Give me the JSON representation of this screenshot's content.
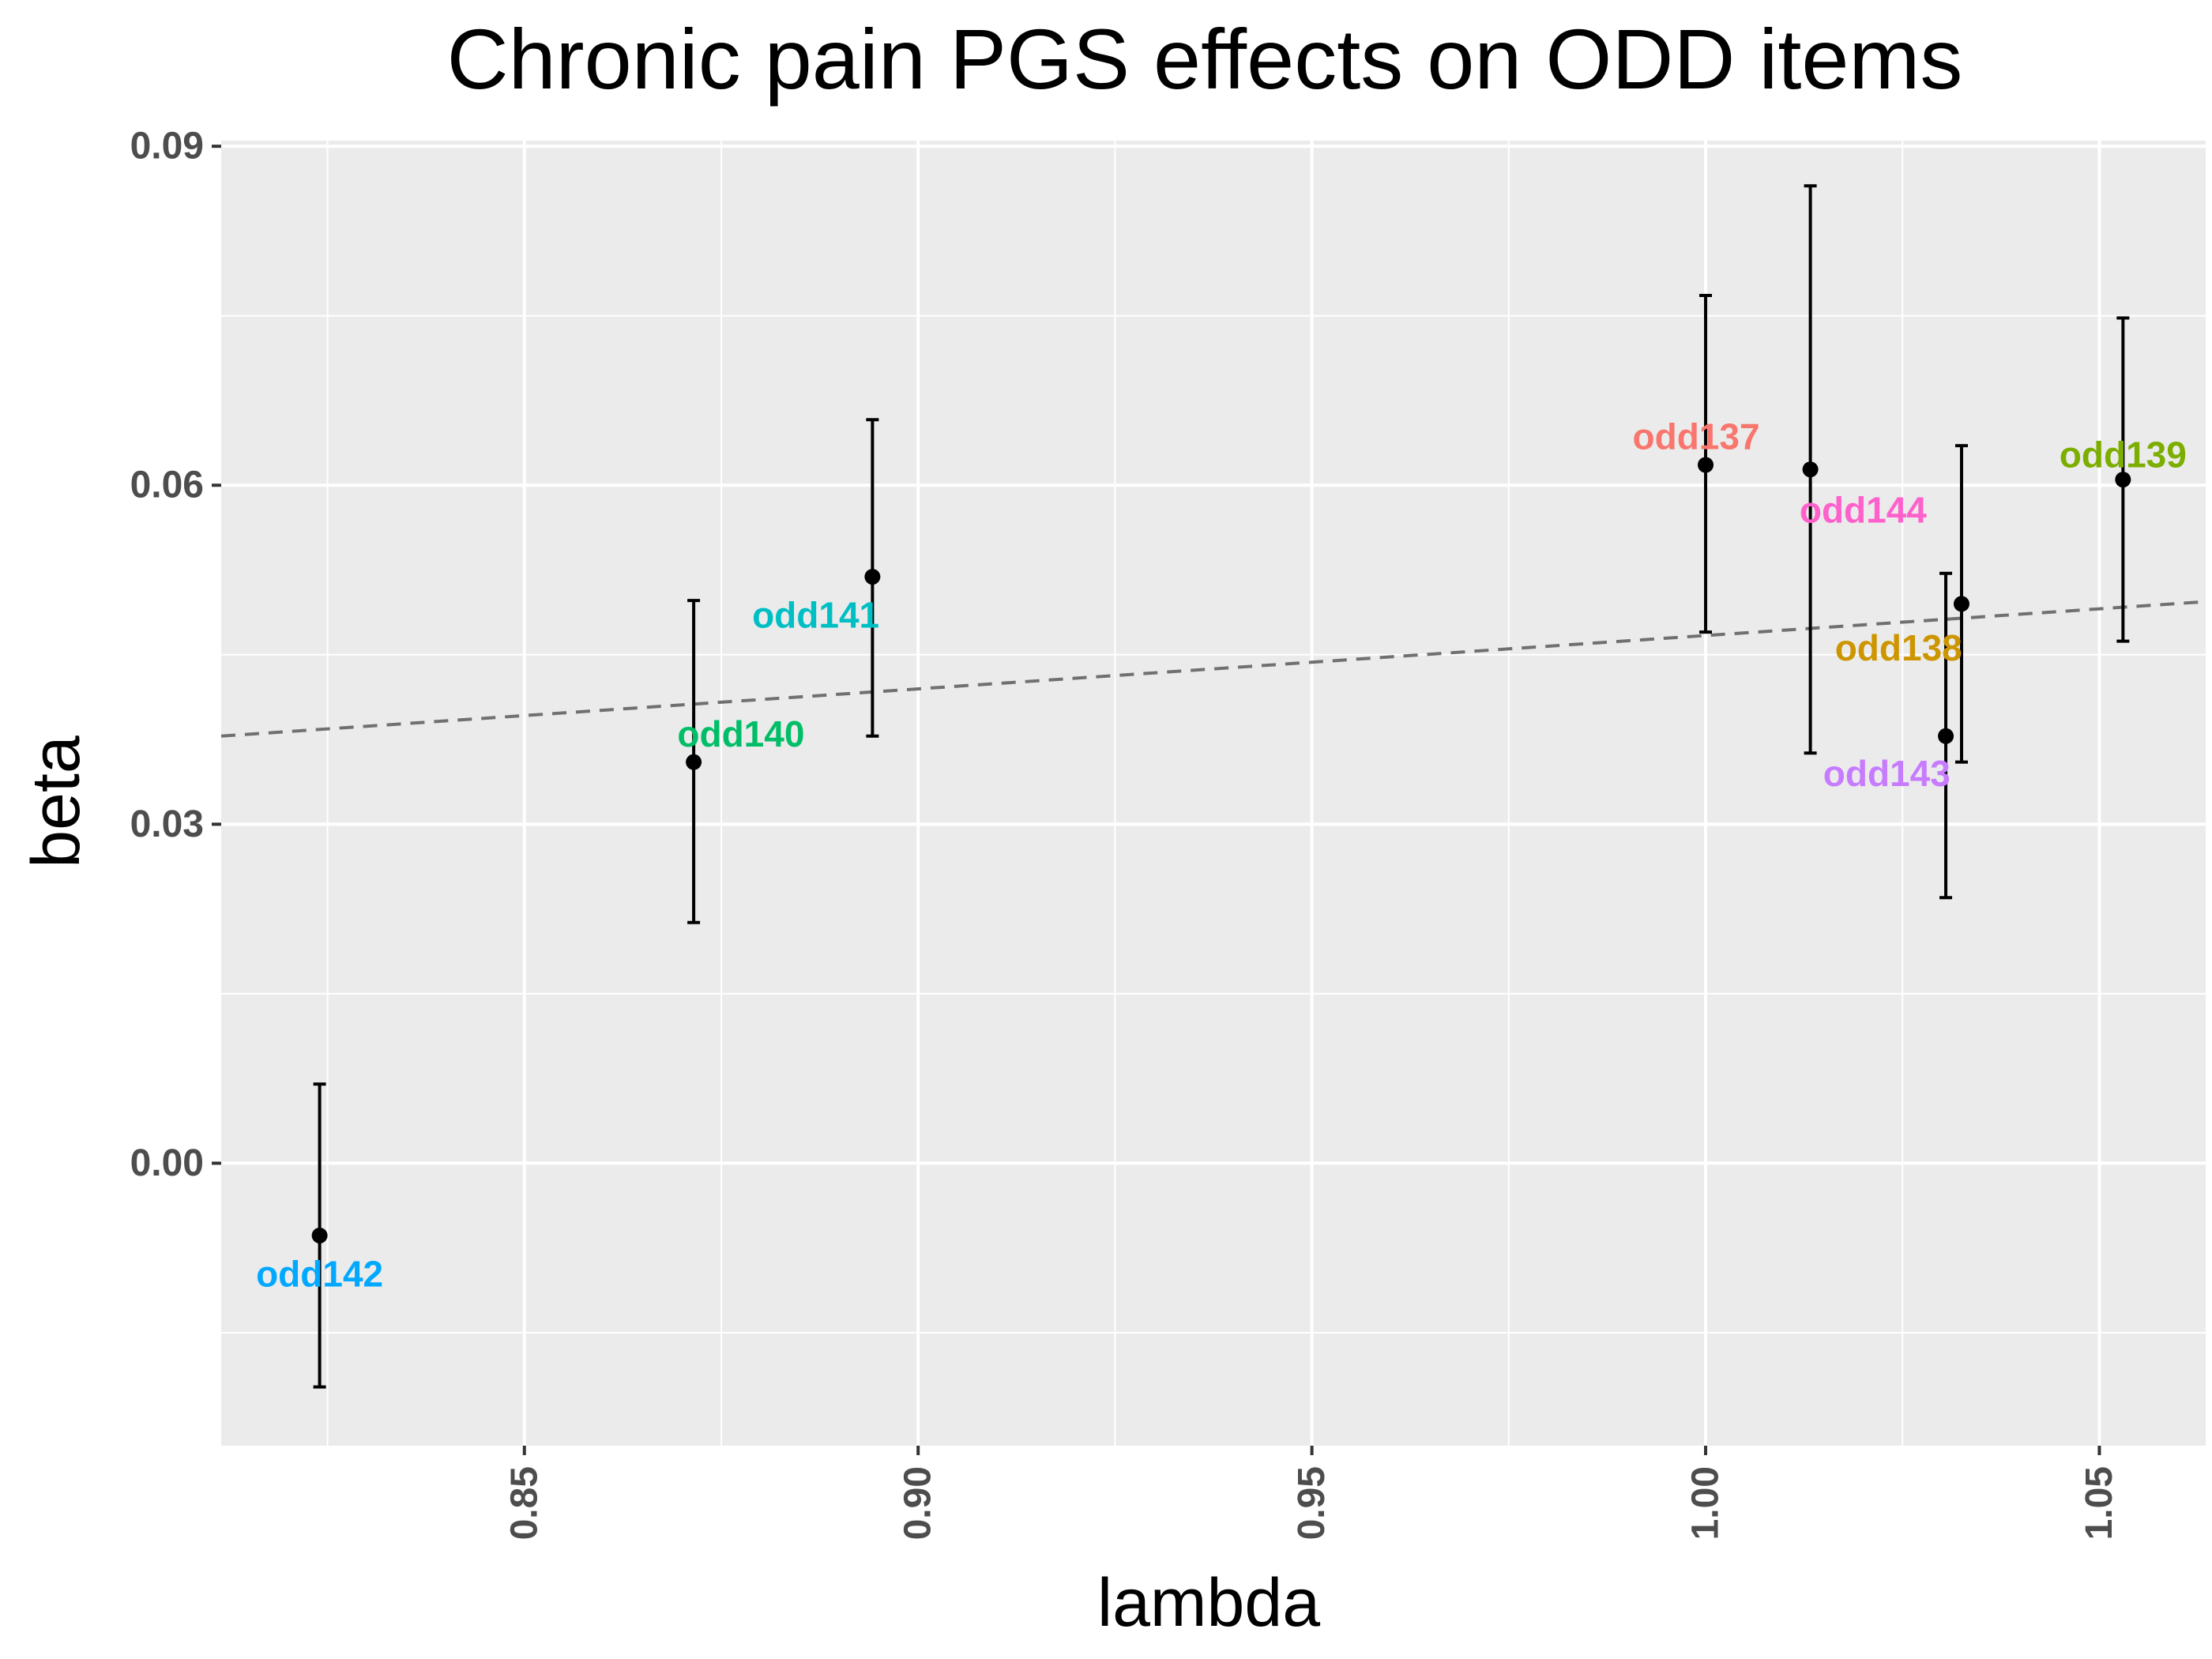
{
  "chart_data": {
    "type": "scatter",
    "title": "Chronic pain PGS effects on ODD items",
    "xlabel": "lambda",
    "ylabel": "beta",
    "xlim": [
      0.8115,
      1.0635
    ],
    "ylim": [
      -0.025,
      0.0905
    ],
    "xticks": [
      0.85,
      0.9,
      0.95,
      1.0,
      1.05
    ],
    "xtick_labels": [
      "0.85",
      "0.90",
      "0.95",
      "1.00",
      "1.05"
    ],
    "yticks": [
      0.0,
      0.03,
      0.06,
      0.09
    ],
    "ytick_labels": [
      "0.00",
      "0.03",
      "0.06",
      "0.09"
    ],
    "x_minor_gridlines": [
      0.825,
      0.875,
      0.925,
      0.975,
      1.025
    ],
    "y_minor_gridlines": [
      -0.015,
      0.015,
      0.045,
      0.075
    ],
    "grid": true,
    "background": "#ebebeb",
    "points": [
      {
        "label": "odd137",
        "x": 1.0,
        "y": 0.0618,
        "ymin": 0.047,
        "ymax": 0.0768,
        "color": "#f8766d",
        "label_x": 0.9988,
        "label_y": 0.0643
      },
      {
        "label": "odd138",
        "x": 1.0325,
        "y": 0.0495,
        "ymin": 0.0355,
        "ymax": 0.0635,
        "color": "#cd9600",
        "label_x": 1.0245,
        "label_y": 0.0456
      },
      {
        "label": "odd139",
        "x": 1.053,
        "y": 0.0605,
        "ymin": 0.0462,
        "ymax": 0.0748,
        "color": "#7cae00",
        "label_x": 1.053,
        "label_y": 0.0627
      },
      {
        "label": "odd140",
        "x": 0.8715,
        "y": 0.0355,
        "ymin": 0.0213,
        "ymax": 0.0498,
        "color": "#00be67",
        "label_x": 0.8775,
        "label_y": 0.038
      },
      {
        "label": "odd141",
        "x": 0.8942,
        "y": 0.0519,
        "ymin": 0.0378,
        "ymax": 0.0658,
        "color": "#00bfc4",
        "label_x": 0.887,
        "label_y": 0.0485
      },
      {
        "label": "odd142",
        "x": 0.824,
        "y": -0.0064,
        "ymin": -0.0198,
        "ymax": 0.007,
        "color": "#00a9ff",
        "label_x": 0.824,
        "label_y": -0.0098
      },
      {
        "label": "odd143",
        "x": 1.0305,
        "y": 0.0378,
        "ymin": 0.0235,
        "ymax": 0.0522,
        "color": "#c77cff",
        "label_x": 1.023,
        "label_y": 0.0345
      },
      {
        "label": "odd144",
        "x": 1.0133,
        "y": 0.0614,
        "ymin": 0.0363,
        "ymax": 0.0865,
        "color": "#ff61cc",
        "label_x": 1.02,
        "label_y": 0.0578
      }
    ],
    "trend_line": {
      "style": "dashed",
      "color": "#707070",
      "x": [
        0.8115,
        1.0635
      ],
      "y": [
        0.0378,
        0.0497
      ]
    }
  }
}
